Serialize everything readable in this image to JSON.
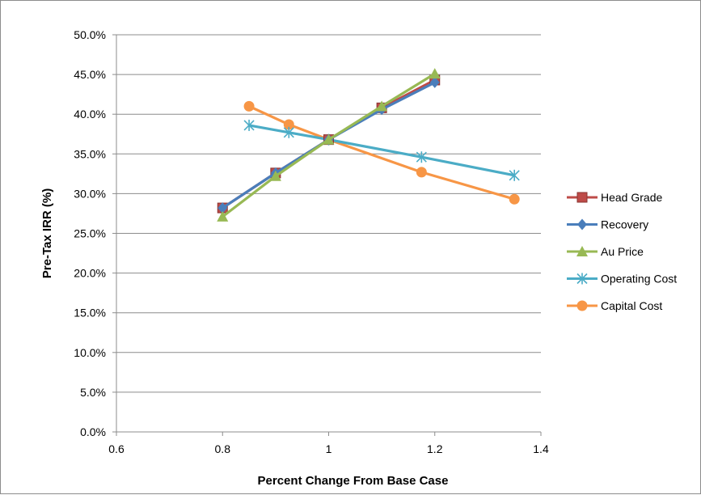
{
  "chart_data": {
    "type": "line",
    "title": "",
    "xlabel": "Percent Change  From Base Case",
    "ylabel": "Pre-Tax IRR (%)",
    "xlim": [
      0.6,
      1.4
    ],
    "ylim": [
      0.0,
      50.0
    ],
    "x_ticks": [
      "0.6",
      "0.8",
      "1",
      "1.2",
      "1.4"
    ],
    "x_tick_values": [
      0.6,
      0.8,
      1.0,
      1.2,
      1.4
    ],
    "y_ticks": [
      "0.0%",
      "5.0%",
      "10.0%",
      "15.0%",
      "20.0%",
      "25.0%",
      "30.0%",
      "35.0%",
      "40.0%",
      "45.0%",
      "50.0%"
    ],
    "y_tick_values": [
      0,
      5,
      10,
      15,
      20,
      25,
      30,
      35,
      40,
      45,
      50
    ],
    "grid": "horizontal",
    "legend_position": "right",
    "series": [
      {
        "name": "Head Grade",
        "color": "#be4b48",
        "marker": "square",
        "x": [
          0.8,
          0.9,
          1.0,
          1.1,
          1.2
        ],
        "y": [
          28.2,
          32.6,
          36.8,
          40.8,
          44.3
        ]
      },
      {
        "name": "Recovery",
        "color": "#4a7ebb",
        "marker": "diamond",
        "x": [
          0.8,
          0.9,
          1.0,
          1.1,
          1.2
        ],
        "y": [
          28.2,
          32.6,
          36.8,
          40.6,
          44.0
        ]
      },
      {
        "name": "Au Price",
        "color": "#98b954",
        "marker": "triangle",
        "x": [
          0.8,
          0.9,
          1.0,
          1.1,
          1.2
        ],
        "y": [
          27.1,
          32.2,
          36.8,
          41.0,
          45.1
        ]
      },
      {
        "name": "Operating Cost",
        "color": "#4bacc6",
        "marker": "star",
        "x": [
          0.85,
          0.925,
          1.0,
          1.175,
          1.35
        ],
        "y": [
          38.6,
          37.7,
          36.8,
          34.6,
          32.3
        ]
      },
      {
        "name": "Capital Cost",
        "color": "#f79646",
        "marker": "circle",
        "x": [
          0.85,
          0.925,
          1.0,
          1.175,
          1.35
        ],
        "y": [
          41.0,
          38.7,
          36.8,
          32.7,
          29.3
        ]
      }
    ]
  }
}
